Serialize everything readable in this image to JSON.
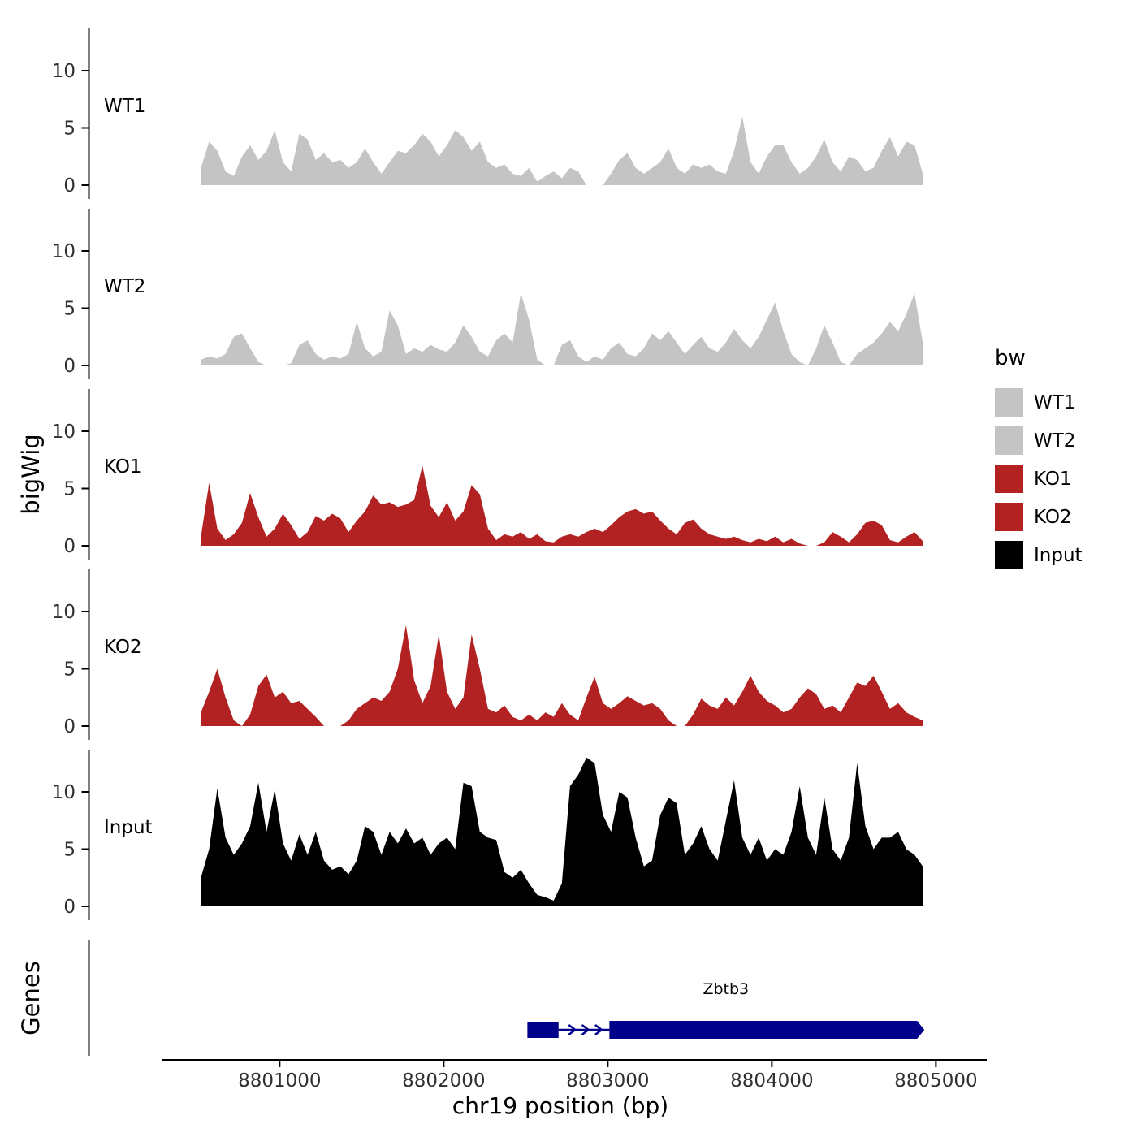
{
  "chart_data": {
    "type": "area",
    "x_title": "chr19 position (bp)",
    "y_title": "bigWig",
    "x_ticks": [
      8801000,
      8802000,
      8803000,
      8804000,
      8805000
    ],
    "x_range": [
      8799840,
      8805310
    ],
    "y_ticks": [
      0,
      5,
      10
    ],
    "y_max": 13.8,
    "x_start": 8800520,
    "x_step": 50,
    "tracks": [
      {
        "name": "WT1",
        "color": "#c4c4c4",
        "values": [
          1.5,
          3.8,
          3.0,
          1.2,
          0.8,
          2.5,
          3.5,
          2.2,
          3.0,
          4.8,
          2.0,
          1.2,
          4.5,
          4.0,
          2.2,
          2.8,
          2.0,
          2.2,
          1.5,
          2.0,
          3.2,
          2.0,
          1.0,
          2.0,
          3.0,
          2.8,
          3.5,
          4.5,
          3.8,
          2.5,
          3.5,
          4.8,
          4.2,
          3.0,
          3.8,
          2.0,
          1.5,
          1.8,
          1.0,
          0.8,
          1.5,
          0.3,
          0.8,
          1.2,
          0.6,
          1.5,
          1.2,
          0,
          0,
          0,
          1.0,
          2.2,
          2.8,
          1.5,
          1.0,
          1.5,
          2.0,
          3.2,
          1.5,
          1.0,
          1.8,
          1.5,
          1.8,
          1.2,
          1.0,
          3.0,
          6.0,
          2.0,
          1.0,
          2.5,
          3.5,
          3.5,
          2.0,
          1.0,
          1.5,
          2.5,
          4.0,
          2.0,
          1.2,
          2.5,
          2.2,
          1.2,
          1.5,
          3.0,
          4.2,
          2.5,
          3.8,
          3.5,
          1.0
        ]
      },
      {
        "name": "WT2",
        "color": "#c4c4c4",
        "values": [
          0.5,
          0.8,
          0.6,
          1.0,
          2.5,
          2.8,
          1.5,
          0.3,
          0,
          0,
          0,
          0.2,
          1.8,
          2.2,
          1.0,
          0.5,
          0.8,
          0.6,
          1.0,
          3.8,
          1.5,
          0.8,
          1.2,
          4.8,
          3.5,
          1.0,
          1.5,
          1.2,
          1.8,
          1.4,
          1.2,
          2.0,
          3.5,
          2.5,
          1.2,
          0.8,
          2.2,
          2.8,
          2.0,
          6.3,
          4.0,
          0.5,
          0,
          0,
          1.8,
          2.2,
          0.8,
          0.3,
          0.8,
          0.5,
          1.5,
          2.0,
          1.0,
          0.8,
          1.5,
          2.8,
          2.2,
          3.0,
          2.0,
          1.0,
          1.8,
          2.5,
          1.5,
          1.2,
          2.0,
          3.2,
          2.2,
          1.5,
          2.5,
          4.0,
          5.5,
          3.0,
          1.0,
          0.3,
          0,
          1.5,
          3.5,
          2.0,
          0.3,
          0,
          1.0,
          1.5,
          2.0,
          2.8,
          3.8,
          3.0,
          4.5,
          6.3,
          2.0
        ]
      },
      {
        "name": "KO1",
        "color": "#b22222",
        "values": [
          0.8,
          5.5,
          1.5,
          0.5,
          1.0,
          2.0,
          4.6,
          2.5,
          0.8,
          1.5,
          2.8,
          1.8,
          0.6,
          1.2,
          2.6,
          2.2,
          2.8,
          2.4,
          1.2,
          2.2,
          3.0,
          4.4,
          3.6,
          3.8,
          3.4,
          3.6,
          4.0,
          7.0,
          3.5,
          2.5,
          3.8,
          2.2,
          3.0,
          5.3,
          4.5,
          1.5,
          0.5,
          1.0,
          0.8,
          1.2,
          0.6,
          1.0,
          0.4,
          0.3,
          0.8,
          1.0,
          0.8,
          1.2,
          1.5,
          1.2,
          1.8,
          2.5,
          3.0,
          3.2,
          2.8,
          3.0,
          2.2,
          1.5,
          1.0,
          2.0,
          2.3,
          1.5,
          1.0,
          0.8,
          0.6,
          0.8,
          0.5,
          0.3,
          0.6,
          0.4,
          0.8,
          0.3,
          0.6,
          0.2,
          0,
          0,
          0.3,
          1.2,
          0.8,
          0.3,
          1.0,
          2.0,
          2.2,
          1.8,
          0.5,
          0.3,
          0.8,
          1.2,
          0.4
        ]
      },
      {
        "name": "KO2",
        "color": "#b22222",
        "values": [
          1.2,
          3.0,
          5.0,
          2.5,
          0.5,
          0,
          1.0,
          3.5,
          4.5,
          2.5,
          3.0,
          2.0,
          2.2,
          1.5,
          0.8,
          0,
          0,
          0,
          0.5,
          1.5,
          2.0,
          2.5,
          2.2,
          3.0,
          5.0,
          8.8,
          4.0,
          2.0,
          3.5,
          8.0,
          3.0,
          1.5,
          2.5,
          8.0,
          5.0,
          1.5,
          1.2,
          1.8,
          0.8,
          0.5,
          1.0,
          0.5,
          1.2,
          0.8,
          2.0,
          1.0,
          0.5,
          2.5,
          4.3,
          2.0,
          1.5,
          2.0,
          2.6,
          2.2,
          1.8,
          2.0,
          1.5,
          0.5,
          0,
          0,
          1.0,
          2.4,
          1.8,
          1.5,
          2.5,
          1.8,
          3.0,
          4.4,
          3.0,
          2.2,
          1.8,
          1.2,
          1.5,
          2.5,
          3.3,
          2.8,
          1.5,
          1.8,
          1.2,
          2.5,
          3.8,
          3.5,
          4.4,
          3.0,
          1.5,
          2.0,
          1.2,
          0.8,
          0.5
        ]
      },
      {
        "name": "Input",
        "color": "#000000",
        "values": [
          2.5,
          5.0,
          10.3,
          6.0,
          4.5,
          5.5,
          7.0,
          10.8,
          6.5,
          10.2,
          5.5,
          4.0,
          6.3,
          4.5,
          6.5,
          4.0,
          3.2,
          3.5,
          2.8,
          4.0,
          7.0,
          6.5,
          4.5,
          6.5,
          5.5,
          6.8,
          5.5,
          6.0,
          4.5,
          5.5,
          6.0,
          5.0,
          10.8,
          10.5,
          6.5,
          6.0,
          5.8,
          3.0,
          2.5,
          3.2,
          2.0,
          1.0,
          0.8,
          0.5,
          2.0,
          10.5,
          11.5,
          13.0,
          12.5,
          8.0,
          6.5,
          10.0,
          9.5,
          6.0,
          3.5,
          4.0,
          8.0,
          9.5,
          9.0,
          4.5,
          5.5,
          7.0,
          5.0,
          4.0,
          7.5,
          11.0,
          6.0,
          4.5,
          6.0,
          4.0,
          5.0,
          4.5,
          6.5,
          10.5,
          6.0,
          4.5,
          9.5,
          5.0,
          4.0,
          6.0,
          12.5,
          7.0,
          5.0,
          6.0,
          6.0,
          6.5,
          5.0,
          4.5,
          3.5
        ]
      }
    ],
    "gene_panel": {
      "title": "Genes",
      "genes": [
        {
          "name": "Zbtb3",
          "color": "#00008b",
          "start": 8802510,
          "end": 8804930,
          "exons": [
            [
              8802510,
              8802700
            ],
            [
              8803010,
              8804930
            ]
          ],
          "strand": "+"
        }
      ]
    },
    "legend": {
      "title": "bw",
      "entries": [
        {
          "label": "WT1",
          "color": "#c4c4c4"
        },
        {
          "label": "WT2",
          "color": "#c4c4c4"
        },
        {
          "label": "KO1",
          "color": "#b22222"
        },
        {
          "label": "KO2",
          "color": "#b22222"
        },
        {
          "label": "Input",
          "color": "#000000"
        }
      ]
    }
  }
}
